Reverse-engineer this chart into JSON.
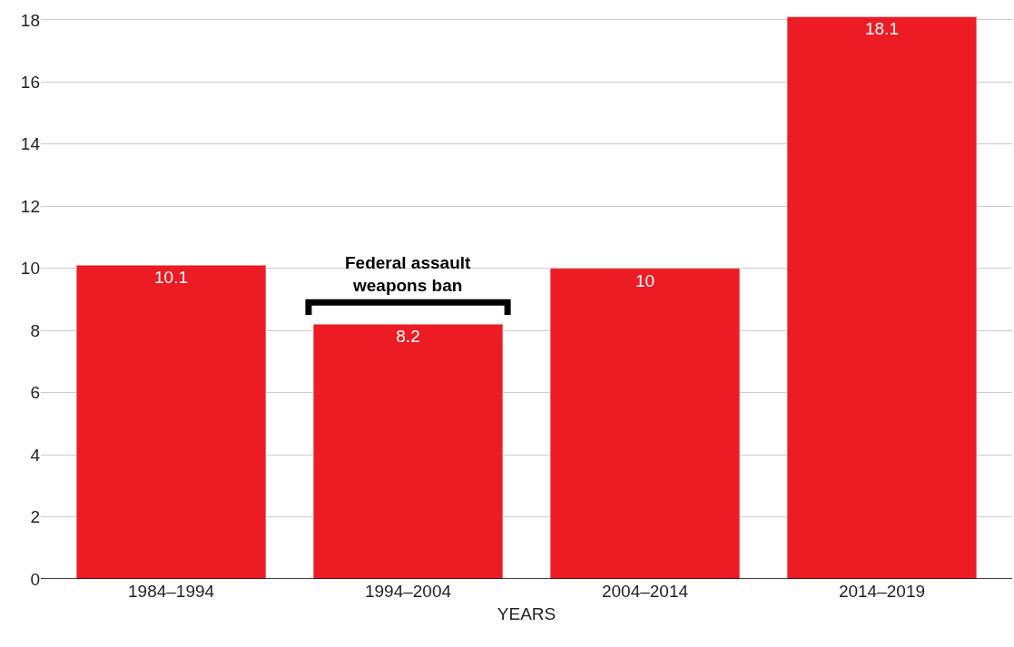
{
  "chart_data": {
    "type": "bar",
    "xlabel": "YEARS",
    "categories": [
      "1984–1994",
      "1994–2004",
      "2004–2014",
      "2014–2019"
    ],
    "values": [
      10.1,
      8.2,
      10,
      18.1
    ],
    "color": "#ed1c24",
    "data_labels": true,
    "ylim": [
      0,
      18.2
    ],
    "yticks": [
      0,
      2,
      4,
      6,
      8,
      10,
      12,
      14,
      16,
      18
    ],
    "grid": "y",
    "annotations": [
      {
        "text": "Federal assault\nweapons ban",
        "x": "1994–2004",
        "y": 8.2
      }
    ]
  }
}
